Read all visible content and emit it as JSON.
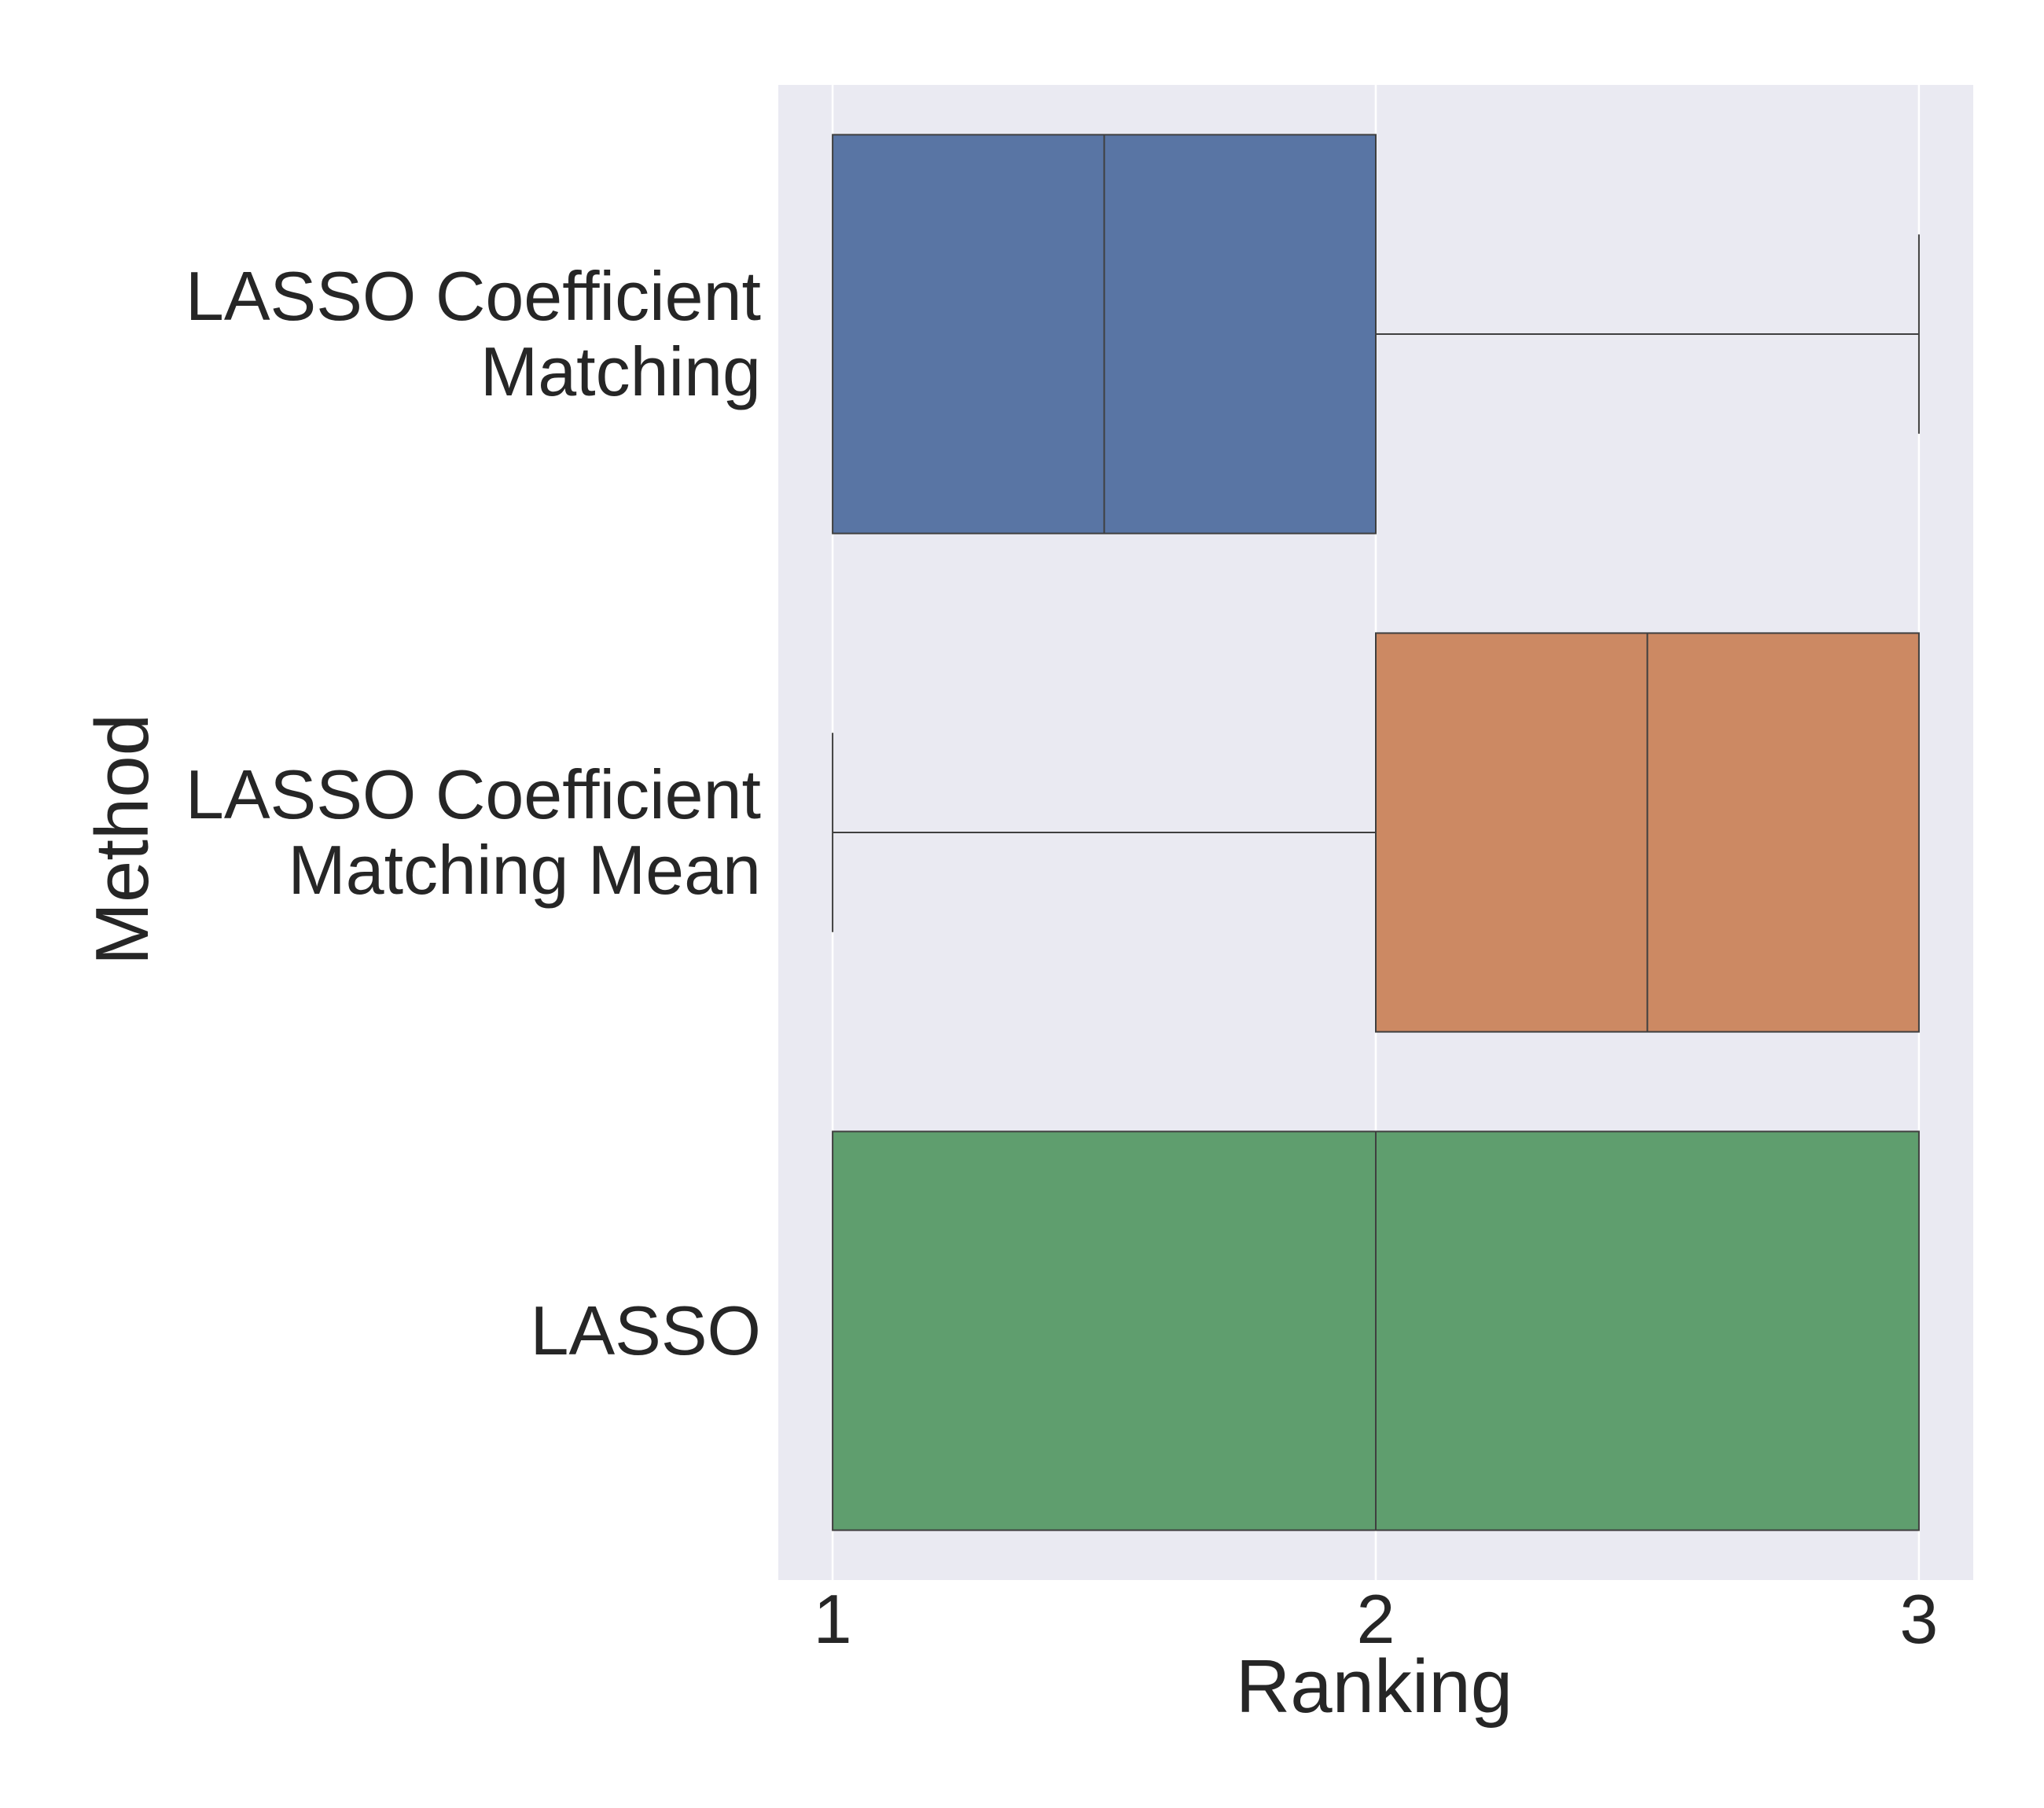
{
  "chart_data": {
    "type": "boxplot",
    "orientation": "horizontal",
    "xlabel": "Ranking",
    "ylabel": "Method",
    "xlim": [
      0.9,
      3.1
    ],
    "xticks": [
      1,
      2,
      3
    ],
    "grid": true,
    "categories": [
      {
        "label_lines": [
          "LASSO Coefficient",
          "Matching"
        ],
        "color": "#5975a4",
        "whisker_low": 1,
        "q1": 1,
        "median": 1.5,
        "q3": 2,
        "whisker_high": 3
      },
      {
        "label_lines": [
          "LASSO Coefficient",
          "Matching Mean"
        ],
        "color": "#cc8963",
        "whisker_low": 1,
        "q1": 2,
        "median": 2.5,
        "q3": 3,
        "whisker_high": 3
      },
      {
        "label_lines": [
          "LASSO"
        ],
        "color": "#5f9e6e",
        "whisker_low": 1,
        "q1": 1,
        "median": 2,
        "q3": 3,
        "whisker_high": 3
      }
    ],
    "colors": {
      "background": "#eaeaf2",
      "grid": "#ffffff",
      "box_edge": "#3f3f3f",
      "text": "#262626"
    }
  }
}
